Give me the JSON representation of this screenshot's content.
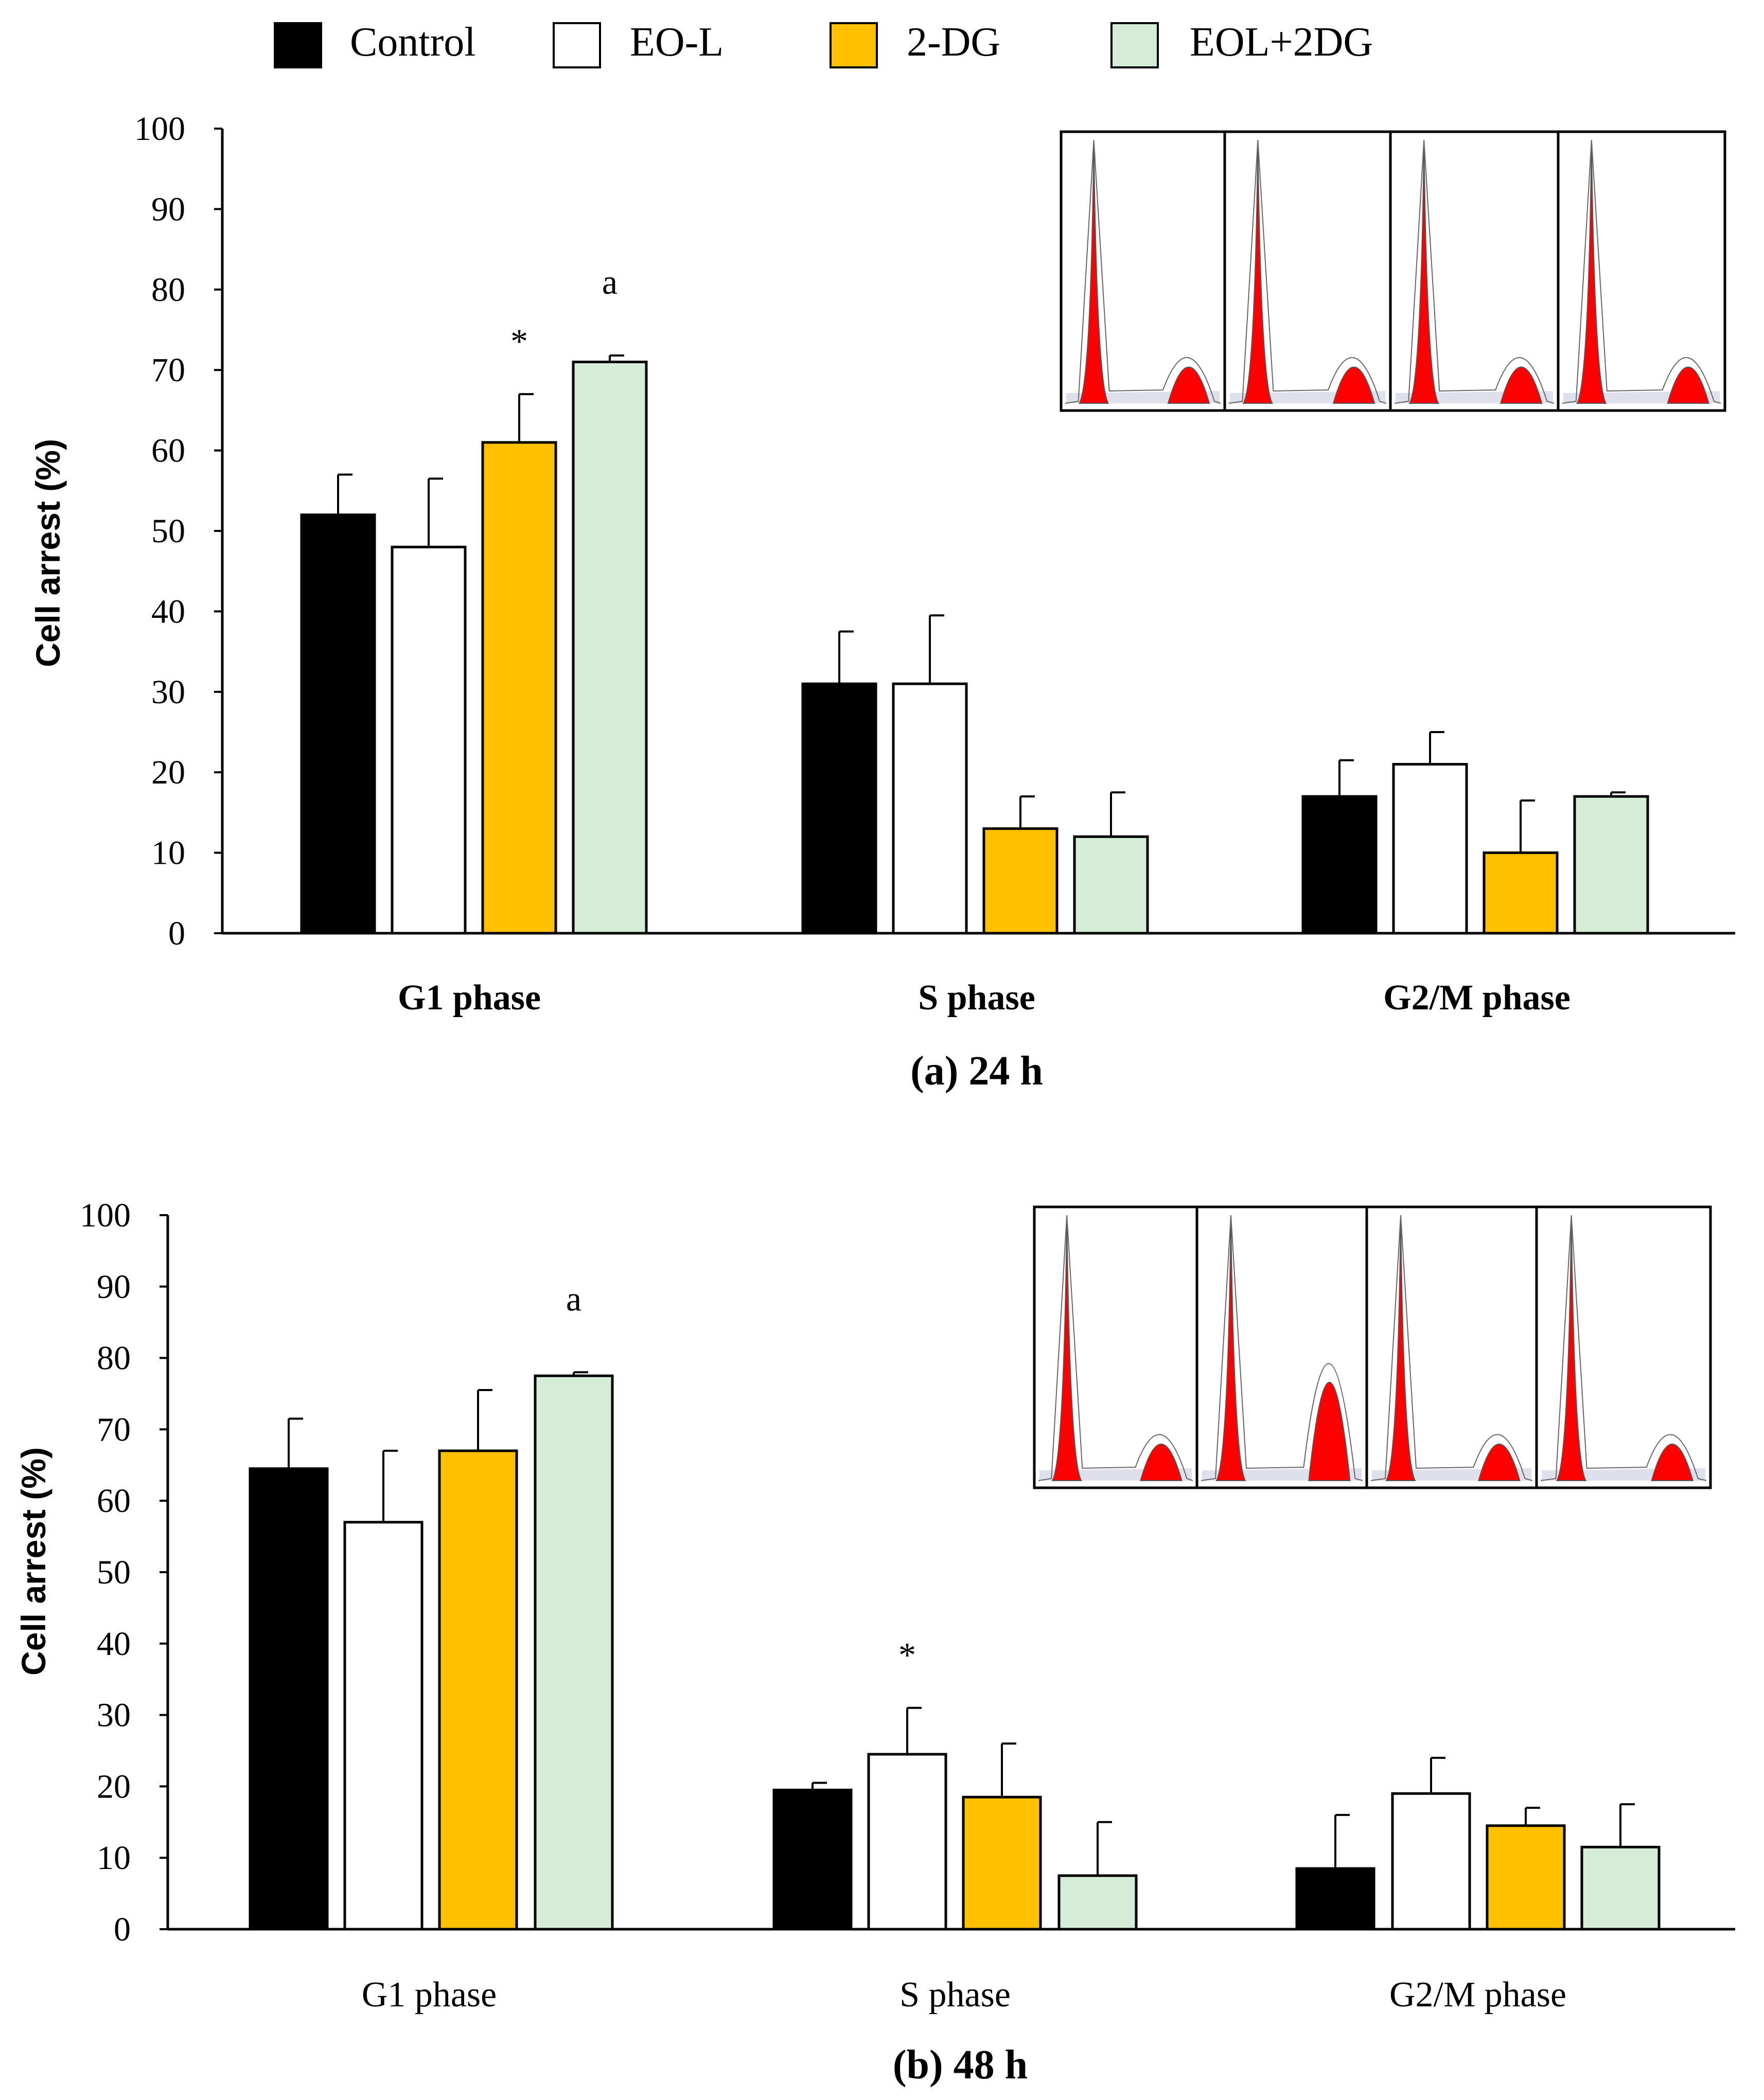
{
  "legend": {
    "items": [
      {
        "label": "Control",
        "color": "#000000"
      },
      {
        "label": "EO-L",
        "color": "#ffffff"
      },
      {
        "label": "2-DG",
        "color": "#ffc000"
      },
      {
        "label": "EOL+2DG",
        "color": "#d5ecd6"
      }
    ]
  },
  "chart_data": [
    {
      "type": "bar",
      "title": "(a) 24 h",
      "xlabel": "",
      "ylabel": "Cell arrest (%)",
      "ylim": [
        0,
        100
      ],
      "yticks": [
        0,
        10,
        20,
        30,
        40,
        50,
        60,
        70,
        80,
        90,
        100
      ],
      "categories": [
        "G1 phase",
        "S phase",
        "G2/M phase"
      ],
      "category_labels_bold": true,
      "series": [
        {
          "name": "Control",
          "values": [
            52,
            31,
            17
          ],
          "errors": [
            5,
            6.5,
            4.5
          ]
        },
        {
          "name": "EO-L",
          "values": [
            48,
            31,
            21
          ],
          "errors": [
            8.5,
            8.5,
            4
          ]
        },
        {
          "name": "2-DG",
          "values": [
            61,
            13,
            10
          ],
          "errors": [
            6,
            4,
            6.5
          ]
        },
        {
          "name": "EOL+2DG",
          "values": [
            71,
            12,
            17
          ],
          "errors": [
            0.8,
            5.5,
            0.5
          ]
        }
      ],
      "annotations": [
        {
          "category": "G1 phase",
          "series": "2-DG",
          "text": "*"
        },
        {
          "category": "G1 phase",
          "series": "EOL+2DG",
          "text": "a"
        }
      ],
      "inset": "flow cytometry DNA content histograms (4 panels)"
    },
    {
      "type": "bar",
      "title": "(b) 48 h",
      "xlabel": "",
      "ylabel": "Cell arrest (%)",
      "ylim": [
        0,
        100
      ],
      "yticks": [
        0,
        10,
        20,
        30,
        40,
        50,
        60,
        70,
        80,
        90,
        100
      ],
      "categories": [
        "G1 phase",
        "S phase",
        "G2/M phase"
      ],
      "category_labels_bold": false,
      "series": [
        {
          "name": "Control",
          "values": [
            64.5,
            19.5,
            8.5
          ],
          "errors": [
            7,
            1,
            7.5
          ]
        },
        {
          "name": "EO-L",
          "values": [
            57,
            24.5,
            19
          ],
          "errors": [
            10,
            6.5,
            5
          ]
        },
        {
          "name": "2-DG",
          "values": [
            67,
            18.5,
            14.5
          ],
          "errors": [
            8.5,
            7.5,
            2.5
          ]
        },
        {
          "name": "EOL+2DG",
          "values": [
            77.5,
            7.5,
            11.5
          ],
          "errors": [
            0.5,
            7.5,
            6
          ]
        }
      ],
      "annotations": [
        {
          "category": "S phase",
          "series": "EO-L",
          "text": "*"
        },
        {
          "category": "G1 phase",
          "series": "EOL+2DG",
          "text": "a"
        }
      ],
      "inset": "flow cytometry DNA content histograms (4 panels)"
    }
  ]
}
